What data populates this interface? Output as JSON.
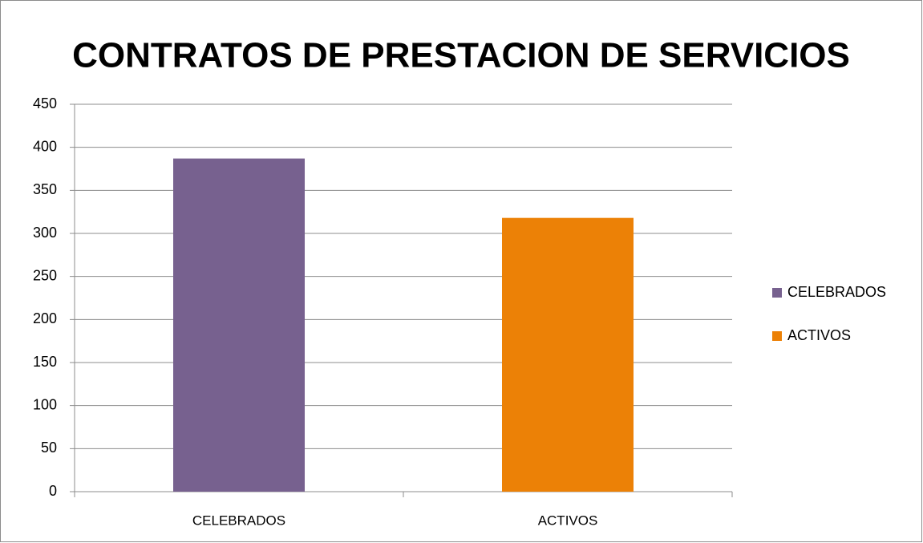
{
  "chart_data": {
    "type": "bar",
    "title": "CONTRATOS DE PRESTACION DE SERVICIOS",
    "categories": [
      "CELEBRADOS",
      "ACTIVOS"
    ],
    "values": [
      387,
      318
    ],
    "colors": [
      "#77618f",
      "#ec8106"
    ],
    "ylim": [
      0,
      450
    ],
    "yticks": [
      0,
      50,
      100,
      150,
      200,
      250,
      300,
      350,
      400,
      450
    ],
    "grid": true,
    "legend": "right"
  }
}
